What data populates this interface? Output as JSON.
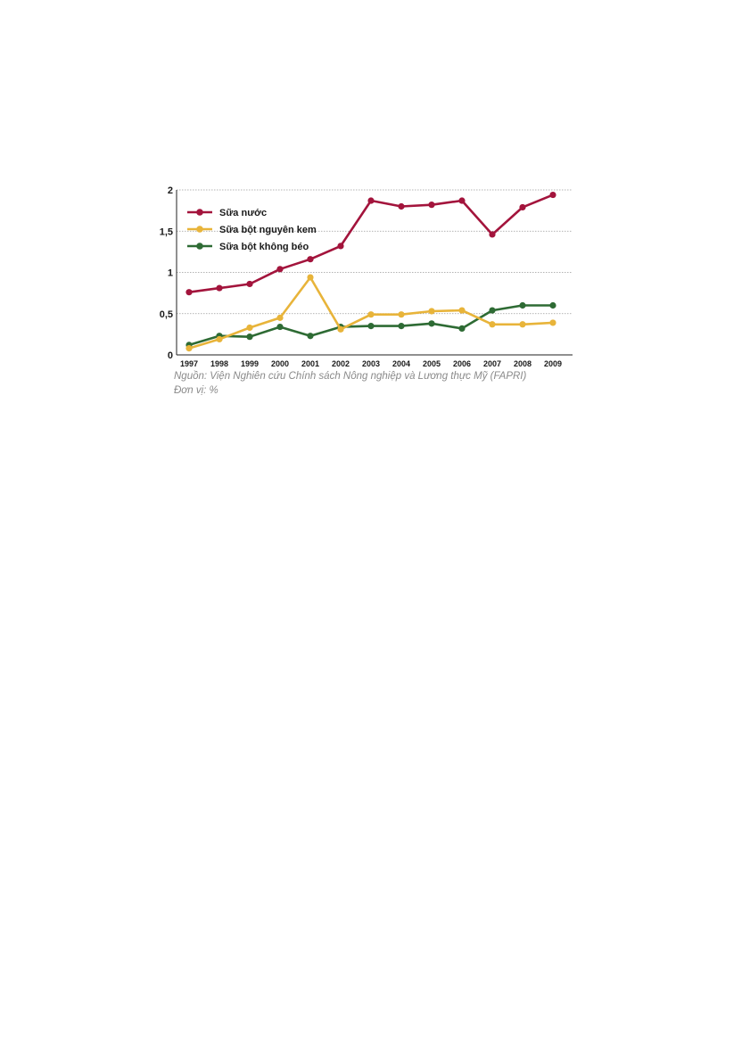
{
  "chart_data": {
    "type": "line",
    "categories": [
      "1997",
      "1998",
      "1999",
      "2000",
      "2001",
      "2002",
      "2003",
      "2004",
      "2005",
      "2006",
      "2007",
      "2008",
      "2009"
    ],
    "series": [
      {
        "name": "Sữa nước",
        "color": "#a3143c",
        "values": [
          0.76,
          0.81,
          0.86,
          1.04,
          1.16,
          1.32,
          1.87,
          1.8,
          1.82,
          1.87,
          1.46,
          1.79,
          1.94
        ]
      },
      {
        "name": "Sữa bột nguyên kem",
        "color": "#e8b43a",
        "values": [
          0.08,
          0.19,
          0.33,
          0.45,
          0.94,
          0.31,
          0.49,
          0.49,
          0.53,
          0.54,
          0.37,
          0.37,
          0.39
        ]
      },
      {
        "name": "Sữa bột không béo",
        "color": "#2e6b34",
        "values": [
          0.12,
          0.23,
          0.22,
          0.34,
          0.23,
          0.34,
          0.35,
          0.35,
          0.38,
          0.32,
          0.54,
          0.6,
          0.6
        ]
      }
    ],
    "ylim": [
      0,
      2
    ],
    "yticks": [
      "0",
      "0,5",
      "1",
      "1,5",
      "2"
    ],
    "grid": true,
    "legend_position": "top-left",
    "source": "Nguồn: Viện Nghiên cứu Chính sách Nông nghiệp và Lương thực Mỹ (FAPRI)",
    "unit": "Đơn vị: %"
  }
}
